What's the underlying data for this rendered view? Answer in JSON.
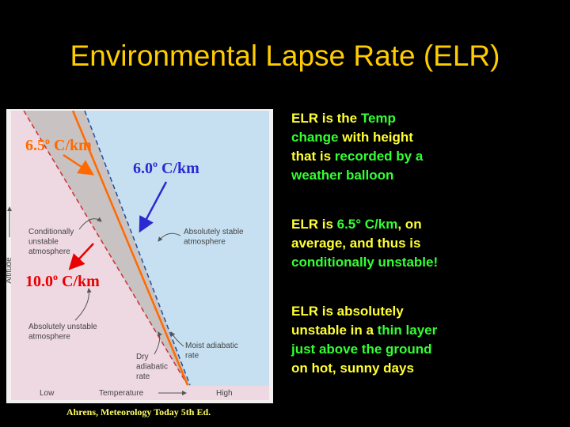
{
  "title": "Environmental Lapse Rate (ELR)",
  "figure": {
    "rate_labels": [
      {
        "value": "6.5",
        "sup": "o",
        "unit": " C/km",
        "color": "#ff6a00"
      },
      {
        "value": "6.0",
        "sup": "o",
        "unit": " C/km",
        "color": "#2a2ad0"
      },
      {
        "value": "10.0",
        "sup": "o",
        "unit": " C/km",
        "color": "#e80000"
      }
    ],
    "region_labels": [
      [
        "Conditionally",
        "unstable",
        "atmosphere"
      ],
      [
        "Absolutely stable",
        "atmosphere"
      ],
      [
        "Absolutely unstable",
        "atmosphere"
      ],
      [
        "Moist adiabatic",
        "rate"
      ],
      [
        "Dry",
        "adiabatic",
        "rate"
      ]
    ],
    "x_axis": {
      "low": "Low",
      "label": "Temperature",
      "high": "High"
    },
    "y_axis": {
      "label": "Altitude"
    }
  },
  "bullets": [
    [
      [
        {
          "text": "ELR is the ",
          "color": "#ffff33"
        },
        {
          "text": "Temp",
          "color": "#33ff33"
        }
      ],
      [
        {
          "text": "change",
          "color": "#33ff33"
        },
        {
          "text": " with height",
          "color": "#ffff33"
        }
      ],
      [
        {
          "text": "that is ",
          "color": "#ffff33"
        },
        {
          "text": "recorded by a",
          "color": "#33ff33"
        }
      ],
      [
        {
          "text": "weather balloon",
          "color": "#33ff33"
        }
      ]
    ],
    [
      [
        {
          "text": "ELR is ",
          "color": "#ffff33"
        },
        {
          "text": "6.5° C/km",
          "color": "#33ff33"
        },
        {
          "text": ", on",
          "color": "#ffff33"
        }
      ],
      [
        {
          "text": "average, and thus is",
          "color": "#ffff33"
        }
      ],
      [
        {
          "text": "conditionally unstable!",
          "color": "#33ff33"
        }
      ]
    ],
    [
      [
        {
          "text": "ELR is absolutely",
          "color": "#ffff33"
        }
      ],
      [
        {
          "text": "unstable in a ",
          "color": "#ffff33"
        },
        {
          "text": "thin layer",
          "color": "#33ff33"
        }
      ],
      [
        {
          "text": "just above the ground",
          "color": "#33ff33"
        }
      ],
      [
        {
          "text": "on hot, sunny days",
          "color": "#ffff33"
        }
      ]
    ]
  ],
  "caption": "Ahrens, Meteorology Today 5th Ed."
}
